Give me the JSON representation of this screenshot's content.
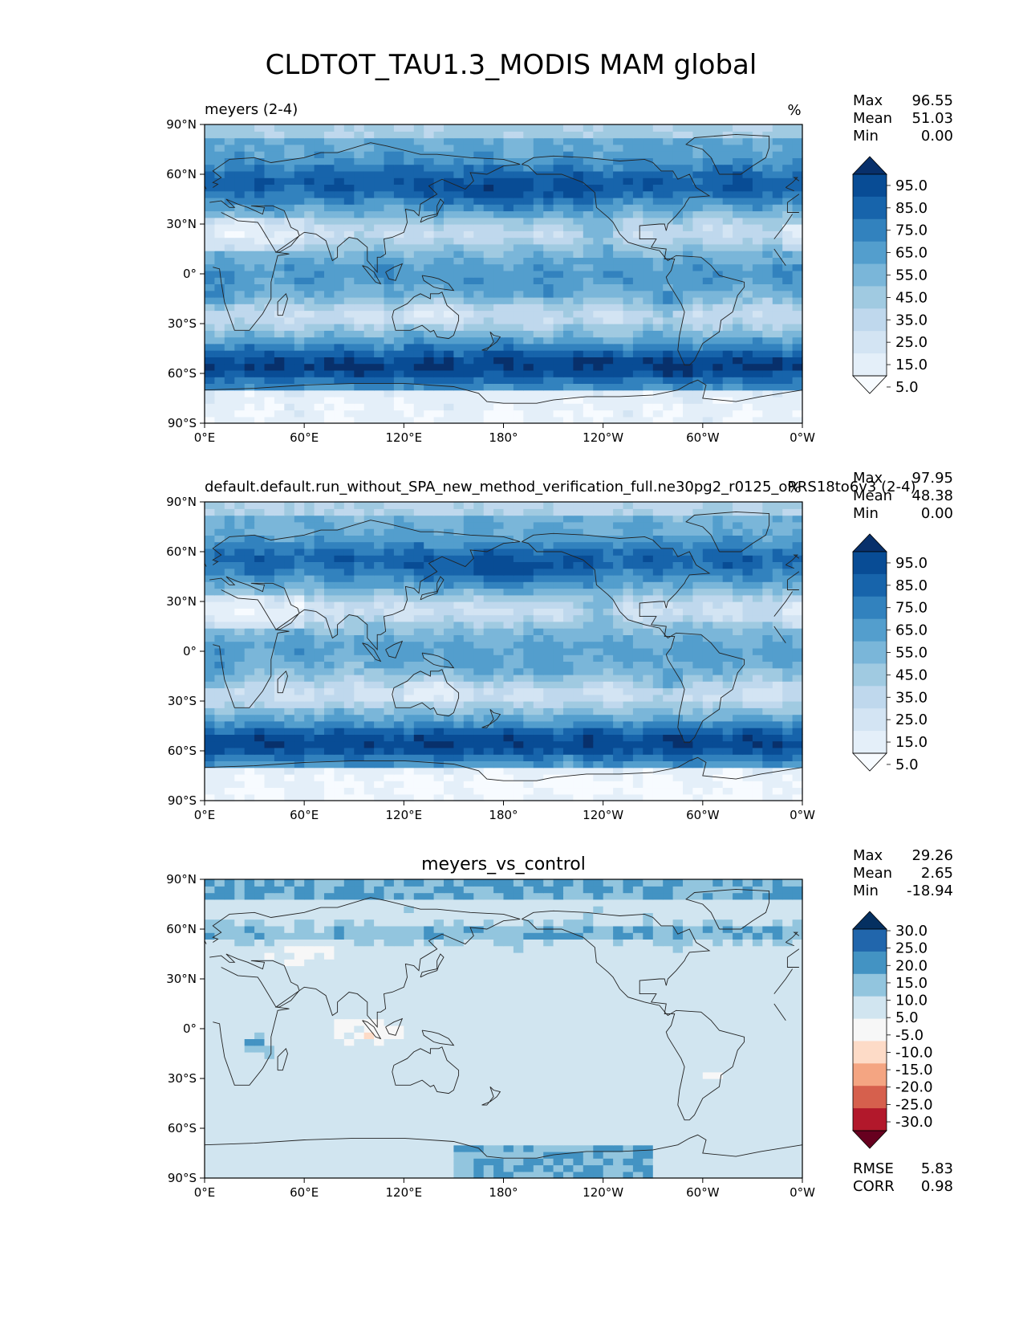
{
  "title": "CLDTOT_TAU1.3_MODIS MAM global",
  "lon_ticks": [
    "0°E",
    "60°E",
    "120°E",
    "180°",
    "120°W",
    "60°W",
    "0°W"
  ],
  "lat_ticks": [
    "90°N",
    "60°N",
    "30°N",
    "0°",
    "30°S",
    "60°S",
    "90°S"
  ],
  "stat_labels": {
    "max": "Max",
    "mean": "Mean",
    "min": "Min",
    "rmse": "RMSE",
    "corr": "CORR"
  },
  "colors": {
    "blues": [
      "#f7fbff",
      "#deebf7",
      "#c6dbef",
      "#9ecae1",
      "#6baed6",
      "#4292c6",
      "#2171b5",
      "#08519c",
      "#08306b"
    ],
    "diverging": [
      "#67001f",
      "#b2182b",
      "#d6604d",
      "#f4a582",
      "#fddbc7",
      "#f7f7f7",
      "#d1e5f0",
      "#92c5de",
      "#4393c3",
      "#2166ac",
      "#053061"
    ],
    "coast": "#222222"
  },
  "chart_data": [
    {
      "type": "heatmap",
      "name": "test",
      "left_title": "meyers (2-4)",
      "center_title": "",
      "units": "%",
      "stats": {
        "max": "96.55",
        "mean": "51.03",
        "min": "0.00"
      },
      "colorbar_ticks": [
        "95.0",
        "85.0",
        "75.0",
        "65.0",
        "55.0",
        "45.0",
        "35.0",
        "25.0",
        "15.0",
        "5.0"
      ],
      "colorbar_levels": [
        0,
        5,
        15,
        25,
        35,
        45,
        55,
        65,
        75,
        85,
        95,
        100
      ],
      "lon_range": [
        0,
        360
      ],
      "lat_range": [
        -90,
        90
      ]
    },
    {
      "type": "heatmap",
      "name": "reference",
      "left_title": "default.default.run_without_SPA_new_method_verification_full.ne30pg2_r0125_oRRS18to6v3 (2-4)",
      "center_title": "",
      "units": "%",
      "stats": {
        "max": "97.95",
        "mean": "48.38",
        "min": "0.00"
      },
      "colorbar_ticks": [
        "95.0",
        "85.0",
        "75.0",
        "65.0",
        "55.0",
        "45.0",
        "35.0",
        "25.0",
        "15.0",
        "5.0"
      ],
      "colorbar_levels": [
        0,
        5,
        15,
        25,
        35,
        45,
        55,
        65,
        75,
        85,
        95,
        100
      ],
      "lon_range": [
        0,
        360
      ],
      "lat_range": [
        -90,
        90
      ]
    },
    {
      "type": "heatmap",
      "name": "difference",
      "left_title": "",
      "center_title": "meyers_vs_control",
      "units": "",
      "stats": {
        "max": "29.26",
        "mean": "2.65",
        "min": "-18.94",
        "rmse": "5.83",
        "corr": "0.98"
      },
      "colorbar_ticks": [
        "30.0",
        "25.0",
        "20.0",
        "15.0",
        "10.0",
        "5.0",
        "-5.0",
        "-10.0",
        "-15.0",
        "-20.0",
        "-25.0",
        "-30.0"
      ],
      "colorbar_levels": [
        -35,
        -30,
        -25,
        -20,
        -15,
        -10,
        -5,
        5,
        10,
        15,
        20,
        25,
        30,
        35
      ],
      "lon_range": [
        0,
        360
      ],
      "lat_range": [
        -90,
        90
      ]
    }
  ]
}
